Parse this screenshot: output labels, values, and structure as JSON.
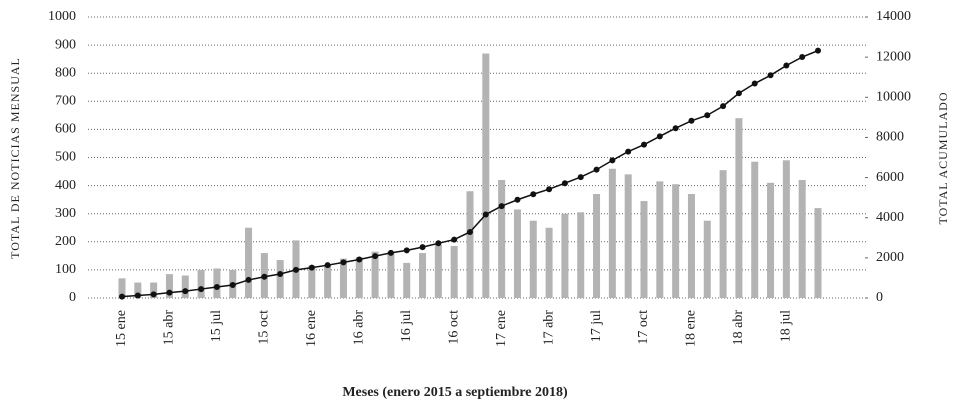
{
  "chart_data": {
    "type": "bar",
    "x_label": "Meses (enero 2015 a septiembre 2018)",
    "y_label": "TOTAL DE NOTICIAS MENSUAL",
    "y2_label": "TOTAL ACUMULADO",
    "categories": [
      "15 ene",
      null,
      null,
      "15 abr",
      null,
      null,
      "15 jul",
      null,
      null,
      "15 oct",
      null,
      null,
      "16 ene",
      null,
      null,
      "16 abr",
      null,
      null,
      "16 jul",
      null,
      null,
      "16 oct",
      null,
      null,
      "17 ene",
      null,
      null,
      "17 abr",
      null,
      null,
      "17 jul",
      null,
      null,
      "17 oct",
      null,
      null,
      "18 ene",
      null,
      null,
      "18 abr",
      null,
      null,
      "18 jul",
      null,
      null
    ],
    "series": [
      {
        "type": "bar",
        "color": "#b3b3b3",
        "values": [
          70,
          55,
          55,
          85,
          80,
          100,
          105,
          100,
          250,
          160,
          135,
          205,
          115,
          120,
          140,
          145,
          165,
          165,
          125,
          160,
          190,
          185,
          380,
          870,
          420,
          315,
          275,
          250,
          300,
          305,
          370,
          460,
          440,
          345,
          415,
          405,
          370,
          275,
          455,
          640,
          485,
          410,
          490,
          420,
          320
        ]
      },
      {
        "type": "line",
        "axis": "y2",
        "color": "#111111",
        "values": [
          70,
          125,
          180,
          265,
          345,
          445,
          550,
          650,
          900,
          1060,
          1195,
          1400,
          1515,
          1635,
          1775,
          1920,
          2085,
          2250,
          2375,
          2535,
          2725,
          2910,
          3290,
          4160,
          4580,
          4895,
          5170,
          5420,
          5720,
          6025,
          6395,
          6855,
          7295,
          7640,
          8055,
          8460,
          8830,
          9105,
          9560,
          10200,
          10685,
          11095,
          11585,
          12005,
          12325
        ]
      }
    ],
    "ylim": [
      0,
      1000
    ],
    "yticks": [
      0,
      100,
      200,
      300,
      400,
      500,
      600,
      700,
      800,
      900,
      1000
    ],
    "y2lim": [
      0,
      14000
    ],
    "y2ticks": [
      0,
      2000,
      4000,
      6000,
      8000,
      10000,
      12000,
      14000
    ],
    "grid": true
  }
}
